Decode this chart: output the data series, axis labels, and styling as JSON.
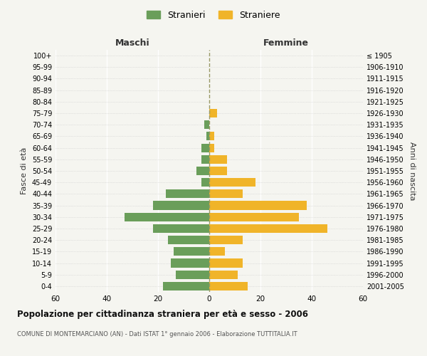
{
  "age_groups": [
    "0-4",
    "5-9",
    "10-14",
    "15-19",
    "20-24",
    "25-29",
    "30-34",
    "35-39",
    "40-44",
    "45-49",
    "50-54",
    "55-59",
    "60-64",
    "65-69",
    "70-74",
    "75-79",
    "80-84",
    "85-89",
    "90-94",
    "95-99",
    "100+"
  ],
  "birth_years": [
    "2001-2005",
    "1996-2000",
    "1991-1995",
    "1986-1990",
    "1981-1985",
    "1976-1980",
    "1971-1975",
    "1966-1970",
    "1961-1965",
    "1956-1960",
    "1951-1955",
    "1946-1950",
    "1941-1945",
    "1936-1940",
    "1931-1935",
    "1926-1930",
    "1921-1925",
    "1916-1920",
    "1911-1915",
    "1906-1910",
    "≤ 1905"
  ],
  "maschi": [
    18,
    13,
    15,
    14,
    16,
    22,
    33,
    22,
    17,
    3,
    5,
    3,
    3,
    1,
    2,
    0,
    0,
    0,
    0,
    0,
    0
  ],
  "femmine": [
    15,
    11,
    13,
    6,
    13,
    46,
    35,
    38,
    13,
    18,
    7,
    7,
    2,
    2,
    0,
    3,
    0,
    0,
    0,
    0,
    0
  ],
  "color_maschi": "#6a9e5a",
  "color_femmine": "#f0b429",
  "background_color": "#f5f5f0",
  "xlim": 60,
  "title": "Popolazione per cittadinanza straniera per età e sesso - 2006",
  "subtitle": "COMUNE DI MONTEMARCIANO (AN) - Dati ISTAT 1° gennaio 2006 - Elaborazione TUTTITALIA.IT",
  "xlabel_left": "Maschi",
  "xlabel_right": "Femmine",
  "ylabel_left": "Fasce di età",
  "ylabel_right": "Anni di nascita",
  "legend_maschi": "Stranieri",
  "legend_femmine": "Straniere",
  "xticks": [
    -60,
    -40,
    -20,
    0,
    20,
    40,
    60
  ],
  "xtick_labels": [
    "60",
    "40",
    "20",
    "0",
    "20",
    "40",
    "60"
  ],
  "figsize": [
    6.0,
    5.0
  ],
  "dpi": 100
}
